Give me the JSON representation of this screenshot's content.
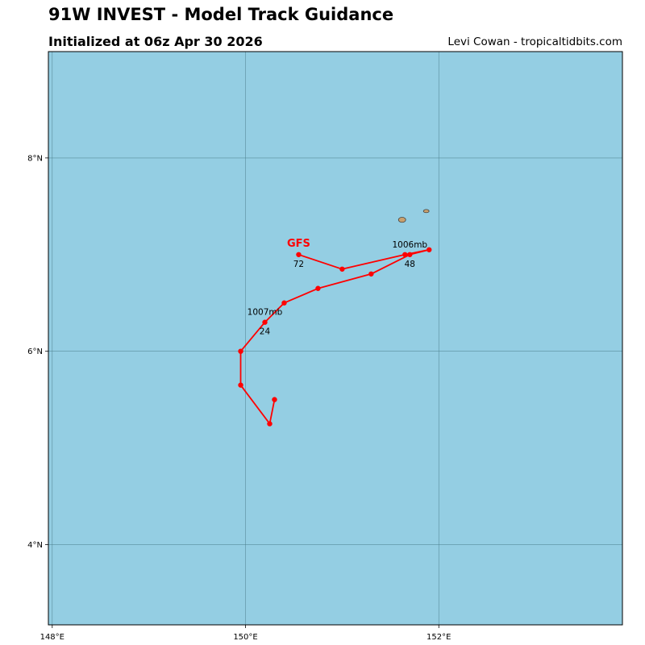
{
  "header": {
    "title": "91W INVEST - Model Track Guidance",
    "subtitle": "Initialized at 06z Apr 30 2026",
    "credit": "Levi Cowan - tropicaltidbits.com"
  },
  "map": {
    "ocean_color": "#94cee3",
    "land_color": "#c8a06e",
    "grid_color": "#4a7d8a",
    "lon_range": [
      147.96,
      153.9
    ],
    "lat_range": [
      3.17,
      9.1
    ],
    "lon_ticks": [
      {
        "value": 148,
        "label": "148°E"
      },
      {
        "value": 150,
        "label": "150°E"
      },
      {
        "value": 152,
        "label": "152°E"
      }
    ],
    "lat_ticks": [
      {
        "value": 8,
        "label": "8°N"
      },
      {
        "value": 6,
        "label": "6°N"
      },
      {
        "value": 4,
        "label": "4°N"
      }
    ],
    "islands": [
      {
        "lon": 151.62,
        "lat": 7.36
      },
      {
        "lon": 151.87,
        "lat": 7.45
      }
    ]
  },
  "chart_data": {
    "type": "scatter",
    "title": "91W INVEST - Model Track Guidance",
    "series": [
      {
        "name": "GFS",
        "color": "#ff0000",
        "track": [
          {
            "lon": 150.3,
            "lat": 5.5
          },
          {
            "lon": 150.25,
            "lat": 5.25
          },
          {
            "lon": 149.95,
            "lat": 5.65
          },
          {
            "lon": 149.95,
            "lat": 6.0
          },
          {
            "lon": 150.2,
            "lat": 6.3
          },
          {
            "lon": 150.4,
            "lat": 6.5
          },
          {
            "lon": 150.75,
            "lat": 6.65
          },
          {
            "lon": 151.3,
            "lat": 6.8
          },
          {
            "lon": 151.7,
            "lat": 7.0
          },
          {
            "lon": 151.9,
            "lat": 7.05
          },
          {
            "lon": 151.65,
            "lat": 7.0
          },
          {
            "lon": 151.0,
            "lat": 6.85
          },
          {
            "lon": 150.55,
            "lat": 7.0
          }
        ]
      }
    ],
    "annotations": [
      {
        "text": "1007mb",
        "lon": 150.2,
        "lat": 6.3,
        "position": "above"
      },
      {
        "text": "24",
        "lon": 150.2,
        "lat": 6.3,
        "position": "below"
      },
      {
        "text": "1006mb",
        "lon": 151.7,
        "lat": 7.0,
        "position": "above"
      },
      {
        "text": "48",
        "lon": 151.7,
        "lat": 7.0,
        "position": "below"
      },
      {
        "text": "72",
        "lon": 150.55,
        "lat": 7.0,
        "position": "below"
      },
      {
        "text": "GFS",
        "lon": 150.55,
        "lat": 7.0,
        "position": "label"
      }
    ]
  }
}
